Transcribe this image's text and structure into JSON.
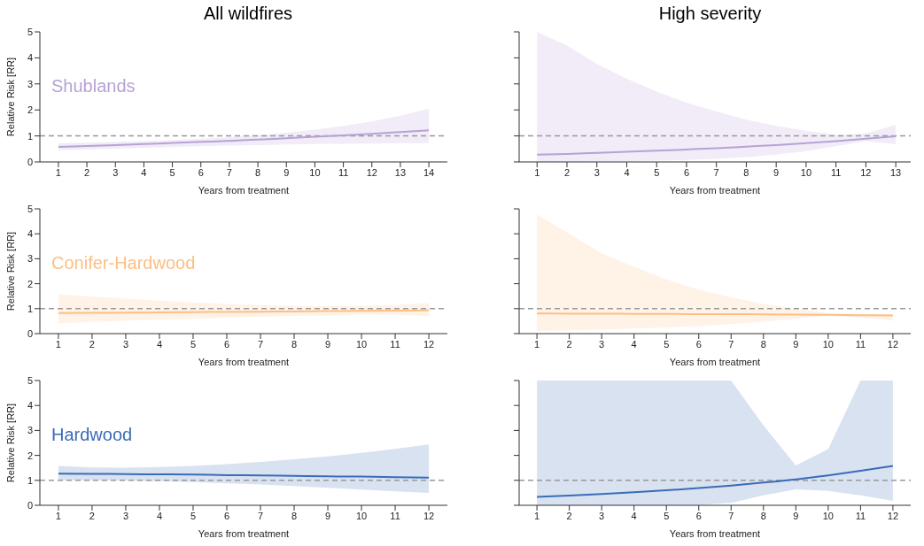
{
  "chart_data": [
    {
      "type": "line",
      "title": "All wildfires",
      "xlabel": "Years from treatment",
      "ylabel": "Relative Risk [RR]",
      "x": [
        1,
        2,
        3,
        4,
        5,
        6,
        7,
        8,
        9,
        10,
        11,
        12,
        13,
        14
      ],
      "xlim": [
        0.35,
        14.65
      ],
      "xticks": [
        1,
        2,
        3,
        4,
        5,
        6,
        7,
        8,
        9,
        10,
        11,
        12,
        13,
        14
      ],
      "ylim": [
        0,
        5
      ],
      "yticks": [
        0,
        1,
        2,
        3,
        4,
        5
      ],
      "series": [
        {
          "name": "Shublands",
          "color": "#b7a2d6",
          "values": [
            0.58,
            0.61,
            0.65,
            0.69,
            0.73,
            0.77,
            0.81,
            0.86,
            0.91,
            0.97,
            1.02,
            1.08,
            1.15,
            1.22
          ],
          "lower": [
            0.45,
            0.48,
            0.51,
            0.54,
            0.57,
            0.6,
            0.63,
            0.65,
            0.67,
            0.69,
            0.7,
            0.71,
            0.72,
            0.72
          ],
          "upper": [
            0.72,
            0.74,
            0.77,
            0.8,
            0.84,
            0.89,
            0.95,
            1.03,
            1.12,
            1.24,
            1.39,
            1.56,
            1.78,
            2.05
          ]
        }
      ],
      "ref_lines": [
        {
          "axis": "y",
          "value": 1,
          "color": "#999999",
          "line_style": "dashed"
        }
      ]
    },
    {
      "type": "line",
      "title": "High severity",
      "xlabel": "Years from treatment",
      "x": [
        1,
        2,
        3,
        4,
        5,
        6,
        7,
        8,
        9,
        10,
        11,
        12,
        13
      ],
      "xlim": [
        0.4,
        13.5
      ],
      "xticks": [
        1,
        2,
        3,
        4,
        5,
        6,
        7,
        8,
        9,
        10,
        11,
        12,
        13
      ],
      "ylim": [
        0,
        5
      ],
      "yticks": [
        0,
        1,
        2,
        3,
        4,
        5
      ],
      "tick_labels": "x",
      "series": [
        {
          "color": "#b7a2d6",
          "values": [
            0.28,
            0.31,
            0.35,
            0.39,
            0.43,
            0.48,
            0.53,
            0.59,
            0.65,
            0.72,
            0.8,
            0.89,
            0.99
          ],
          "lower": [
            0,
            0.01,
            0.02,
            0.03,
            0.05,
            0.08,
            0.12,
            0.19,
            0.28,
            0.42,
            0.6,
            0.8,
            0.68
          ],
          "upper": [
            5,
            4.47,
            3.77,
            3.2,
            2.7,
            2.28,
            1.94,
            1.62,
            1.39,
            1.2,
            1.05,
            1.1,
            1.42
          ]
        }
      ],
      "ref_lines": [
        {
          "axis": "y",
          "value": 1,
          "color": "#999999",
          "line_style": "dashed"
        }
      ]
    },
    {
      "type": "line",
      "xlabel": "Years from treatment",
      "ylabel": "Relative Risk [RR]",
      "x": [
        1,
        2,
        3,
        4,
        5,
        6,
        7,
        8,
        9,
        10,
        11,
        12
      ],
      "xlim": [
        0.45,
        12.55
      ],
      "xticks": [
        1,
        2,
        3,
        4,
        5,
        6,
        7,
        8,
        9,
        10,
        11,
        12
      ],
      "ylim": [
        0,
        5
      ],
      "yticks": [
        0,
        1,
        2,
        3,
        4,
        5
      ],
      "series": [
        {
          "name": "Conifer-Hardwood",
          "color": "#fdbf85",
          "values": [
            0.82,
            0.83,
            0.84,
            0.85,
            0.86,
            0.87,
            0.88,
            0.89,
            0.9,
            0.91,
            0.92,
            0.93
          ],
          "lower": [
            0.42,
            0.47,
            0.52,
            0.56,
            0.6,
            0.64,
            0.68,
            0.71,
            0.74,
            0.76,
            0.75,
            0.72
          ],
          "upper": [
            1.58,
            1.48,
            1.4,
            1.32,
            1.25,
            1.19,
            1.14,
            1.11,
            1.1,
            1.11,
            1.15,
            1.22
          ]
        }
      ],
      "ref_lines": [
        {
          "axis": "y",
          "value": 1,
          "color": "#999999",
          "line_style": "dashed"
        }
      ]
    },
    {
      "type": "line",
      "xlabel": "Years from treatment",
      "x": [
        1,
        2,
        3,
        4,
        5,
        6,
        7,
        8,
        9,
        10,
        11,
        12
      ],
      "xlim": [
        0.45,
        12.55
      ],
      "xticks": [
        1,
        2,
        3,
        4,
        5,
        6,
        7,
        8,
        9,
        10,
        11,
        12
      ],
      "ylim": [
        0,
        5
      ],
      "yticks": [
        0,
        1,
        2,
        3,
        4,
        5
      ],
      "tick_labels": "x",
      "series": [
        {
          "color": "#fdbf85",
          "values": [
            0.81,
            0.8,
            0.8,
            0.79,
            0.79,
            0.78,
            0.78,
            0.77,
            0.76,
            0.75,
            0.74,
            0.73
          ],
          "lower": [
            0.11,
            0.13,
            0.16,
            0.2,
            0.25,
            0.3,
            0.38,
            0.48,
            0.6,
            0.72,
            0.65,
            0.52
          ],
          "upper": [
            4.78,
            4.0,
            3.22,
            2.68,
            2.17,
            1.76,
            1.45,
            1.19,
            1.0,
            0.82,
            0.8,
            0.78
          ]
        }
      ],
      "ref_lines": [
        {
          "axis": "y",
          "value": 1,
          "color": "#999999",
          "line_style": "dashed"
        }
      ]
    },
    {
      "type": "line",
      "xlabel": "Years from treatment",
      "ylabel": "Relative Risk [RR]",
      "x": [
        1,
        2,
        3,
        4,
        5,
        6,
        7,
        8,
        9,
        10,
        11,
        12
      ],
      "xlim": [
        0.45,
        12.55
      ],
      "xticks": [
        1,
        2,
        3,
        4,
        5,
        6,
        7,
        8,
        9,
        10,
        11,
        12
      ],
      "ylim": [
        0,
        5
      ],
      "yticks": [
        0,
        1,
        2,
        3,
        4,
        5
      ],
      "series": [
        {
          "name": "Hardwood",
          "color": "#3b6cb7",
          "values": [
            1.27,
            1.26,
            1.25,
            1.24,
            1.23,
            1.21,
            1.2,
            1.18,
            1.16,
            1.15,
            1.13,
            1.11
          ],
          "lower": [
            1.0,
            1.0,
            0.99,
            0.97,
            0.93,
            0.88,
            0.83,
            0.77,
            0.7,
            0.63,
            0.56,
            0.5
          ],
          "upper": [
            1.58,
            1.52,
            1.51,
            1.53,
            1.58,
            1.65,
            1.74,
            1.84,
            1.96,
            2.1,
            2.26,
            2.44
          ]
        }
      ],
      "ref_lines": [
        {
          "axis": "y",
          "value": 1,
          "color": "#999999",
          "line_style": "dashed"
        }
      ]
    },
    {
      "type": "line",
      "xlabel": "Years from treatment",
      "x": [
        1,
        2,
        3,
        4,
        5,
        6,
        7,
        8,
        9,
        10,
        11,
        12
      ],
      "xlim": [
        0.45,
        12.55
      ],
      "xticks": [
        1,
        2,
        3,
        4,
        5,
        6,
        7,
        8,
        9,
        10,
        11,
        12
      ],
      "ylim": [
        0,
        5
      ],
      "yticks": [
        0,
        1,
        2,
        3,
        4,
        5
      ],
      "tick_labels": "x",
      "series": [
        {
          "color": "#3b6cb7",
          "values": [
            0.34,
            0.39,
            0.45,
            0.52,
            0.6,
            0.69,
            0.79,
            0.91,
            1.04,
            1.2,
            1.38,
            1.58
          ],
          "lower": [
            0,
            0,
            0,
            0,
            0,
            0.02,
            0.1,
            0.4,
            0.64,
            0.58,
            0.4,
            0.18
          ],
          "upper": [
            5,
            5,
            5,
            5,
            5,
            5,
            5,
            3.2,
            1.6,
            2.25,
            5,
            5
          ]
        }
      ],
      "ref_lines": [
        {
          "axis": "y",
          "value": 1,
          "color": "#999999",
          "line_style": "dashed"
        }
      ]
    }
  ]
}
